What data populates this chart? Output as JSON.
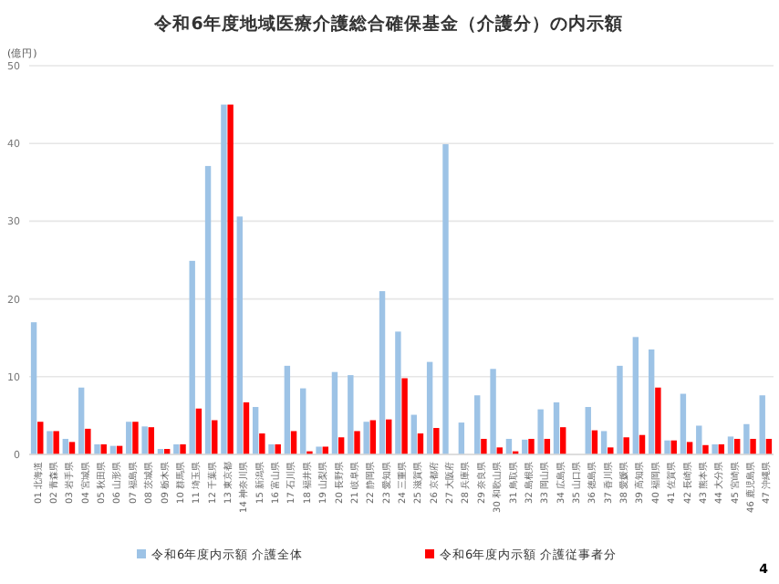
{
  "chart_data": {
    "type": "bar",
    "title": "令和6年度地域医療介護総合確保基金（介護分）の内示額",
    "ylabel": "(億円)",
    "categories": [
      "01 北海道",
      "02 青森県",
      "03 岩手県",
      "04 宮城県",
      "05 秋田県",
      "06 山形県",
      "07 福島県",
      "08 茨城県",
      "09 栃木県",
      "10 群馬県",
      "11 埼玉県",
      "12 千葉県",
      "13 東京都",
      "14 神奈川県",
      "15 新潟県",
      "16 富山県",
      "17 石川県",
      "18 福井県",
      "19 山梨県",
      "20 長野県",
      "21 岐阜県",
      "22 静岡県",
      "23 愛知県",
      "24 三重県",
      "25 滋賀県",
      "26 京都府",
      "27 大阪府",
      "28 兵庫県",
      "29 奈良県",
      "30 和歌山県",
      "31 鳥取県",
      "32 島根県",
      "33 岡山県",
      "34 広島県",
      "35 山口県",
      "36 徳島県",
      "37 香川県",
      "38 愛媛県",
      "39 高知県",
      "40 福岡県",
      "41 佐賀県",
      "42 長崎県",
      "43 熊本県",
      "44 大分県",
      "45 宮崎県",
      "46 鹿児島県",
      "47 沖縄県"
    ],
    "series": [
      {
        "name": "令和6年度内示額 介護全体",
        "color": "#9dc3e6",
        "values": [
          17.0,
          3.0,
          2.0,
          8.6,
          1.3,
          1.1,
          4.2,
          3.6,
          0.7,
          1.3,
          24.9,
          37.1,
          45,
          30.6,
          6.1,
          1.3,
          11.4,
          8.5,
          1.0,
          10.6,
          10.2,
          4.2,
          21,
          15.8,
          5.1,
          11.9,
          39.9,
          4.1,
          7.6,
          11.0,
          2.0,
          1.9,
          5.8,
          6.7,
          0,
          6.1,
          3.0,
          11.4,
          15.1,
          13.5,
          1.8,
          7.8,
          3.7,
          1.3,
          2.3,
          3.9,
          7.6
        ]
      },
      {
        "name": "令和6年度内示額 介護従事者分",
        "color": "#ff0000",
        "values": [
          4.2,
          3.0,
          1.6,
          3.3,
          1.3,
          1.1,
          4.2,
          3.5,
          0.7,
          1.3,
          5.9,
          4.4,
          45,
          6.7,
          2.7,
          1.3,
          3.0,
          0.4,
          1.0,
          2.2,
          3.0,
          4.4,
          4.5,
          9.8,
          2.7,
          3.4,
          0,
          0,
          2.0,
          0.9,
          0.4,
          2.0,
          2.0,
          3.5,
          0,
          3.1,
          0.9,
          2.2,
          2.5,
          8.6,
          1.8,
          1.6,
          1.2,
          1.3,
          2.0,
          2.0,
          2.0
        ]
      }
    ],
    "ylim": [
      0,
      50
    ],
    "yticks": [
      0,
      10,
      20,
      30,
      40,
      50
    ],
    "grid": "y",
    "legend": "bottom",
    "annotations": [
      "4"
    ]
  }
}
